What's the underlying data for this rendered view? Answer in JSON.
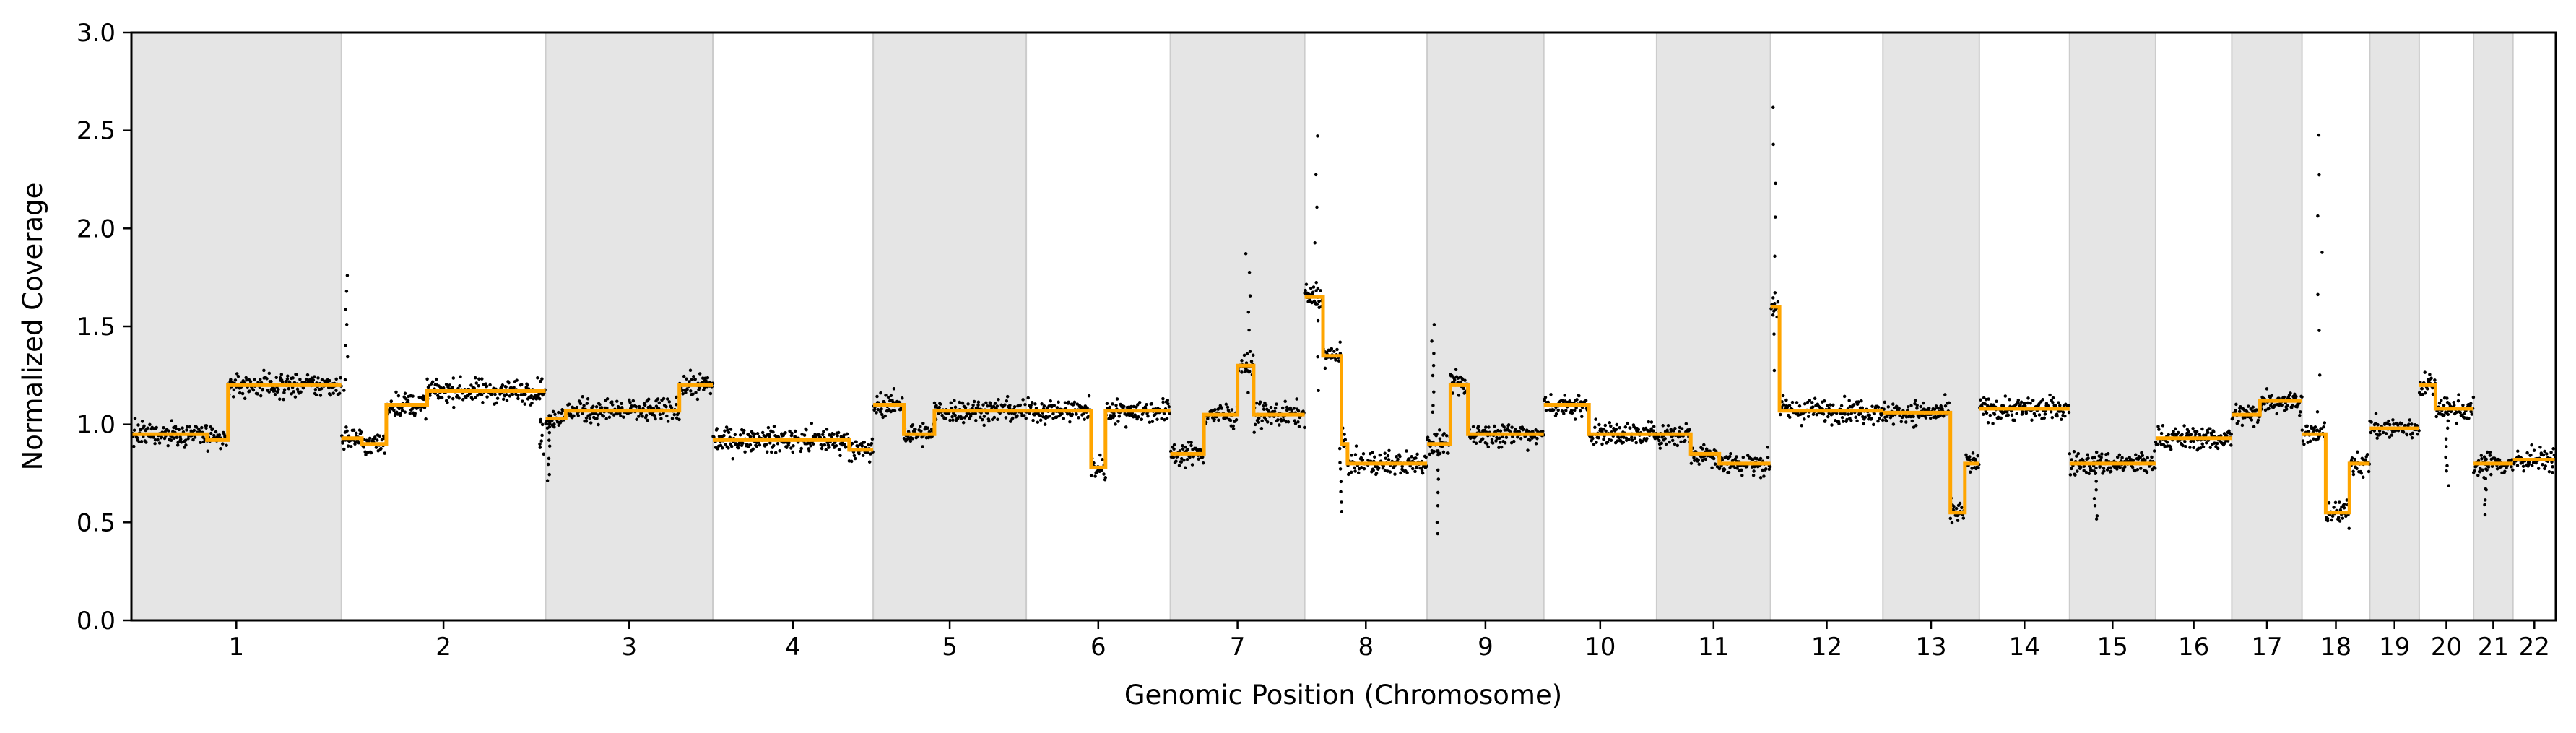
{
  "chart_data": {
    "type": "scatter",
    "xlabel": "Genomic Position (Chromosome)",
    "ylabel": "Normalized Coverage",
    "ylim": [
      0,
      3.0
    ],
    "yticks": [
      "0.0",
      "0.5",
      "1.0",
      "1.5",
      "2.0",
      "2.5",
      "3.0"
    ],
    "grid": false,
    "legend": "none",
    "colors": {
      "points": "#000000",
      "segments": "#FFA500",
      "shade": "#e5e5e5",
      "shade_edge": "#cccccc"
    },
    "chromosomes": [
      {
        "name": "1",
        "size": 248.956,
        "mean": 1.0,
        "segments": [
          [
            0.0,
            0.36,
            0.95
          ],
          [
            0.36,
            0.46,
            0.92
          ],
          [
            0.46,
            0.62,
            1.2
          ],
          [
            0.62,
            1.0,
            1.2
          ]
        ],
        "spikes": []
      },
      {
        "name": "2",
        "size": 242.193,
        "mean": 1.07,
        "segments": [
          [
            0.0,
            0.1,
            0.93
          ],
          [
            0.1,
            0.22,
            0.9
          ],
          [
            0.22,
            0.42,
            1.1
          ],
          [
            0.42,
            1.0,
            1.17
          ]
        ],
        "spikes": [
          [
            0.02,
            1.77
          ],
          [
            0.98,
            0.85
          ]
        ]
      },
      {
        "name": "3",
        "size": 198.295,
        "mean": 1.06,
        "segments": [
          [
            0.0,
            0.12,
            1.03
          ],
          [
            0.12,
            0.8,
            1.07
          ],
          [
            0.8,
            1.0,
            1.2
          ]
        ],
        "spikes": [
          [
            0.02,
            0.7
          ]
        ]
      },
      {
        "name": "4",
        "size": 190.214,
        "mean": 0.93,
        "segments": [
          [
            0.0,
            0.85,
            0.92
          ],
          [
            0.85,
            1.0,
            0.87
          ]
        ],
        "spikes": []
      },
      {
        "name": "5",
        "size": 181.538,
        "mean": 1.02,
        "segments": [
          [
            0.0,
            0.2,
            1.1
          ],
          [
            0.2,
            0.4,
            0.95
          ],
          [
            0.4,
            1.0,
            1.07
          ]
        ],
        "spikes": []
      },
      {
        "name": "6",
        "size": 170.806,
        "mean": 1.06,
        "segments": [
          [
            0.0,
            0.45,
            1.07
          ],
          [
            0.45,
            0.55,
            0.78
          ],
          [
            0.55,
            1.0,
            1.07
          ]
        ],
        "spikes": []
      },
      {
        "name": "7",
        "size": 159.346,
        "mean": 1.07,
        "segments": [
          [
            0.0,
            0.25,
            0.85
          ],
          [
            0.25,
            0.5,
            1.05
          ],
          [
            0.5,
            0.62,
            1.3
          ],
          [
            0.62,
            1.0,
            1.05
          ]
        ],
        "spikes": [
          [
            0.58,
            1.87
          ]
        ]
      },
      {
        "name": "8",
        "size": 145.139,
        "mean": 0.98,
        "segments": [
          [
            0.0,
            0.15,
            1.65
          ],
          [
            0.15,
            0.3,
            1.35
          ],
          [
            0.3,
            0.35,
            0.9
          ],
          [
            0.35,
            1.0,
            0.8
          ]
        ],
        "spikes": [
          [
            0.1,
            2.48
          ],
          [
            0.3,
            0.55
          ]
        ]
      },
      {
        "name": "9",
        "size": 138.395,
        "mean": 0.98,
        "segments": [
          [
            0.0,
            0.2,
            0.9
          ],
          [
            0.2,
            0.35,
            1.2
          ],
          [
            0.35,
            0.6,
            0.95
          ],
          [
            0.6,
            1.0,
            0.95
          ]
        ],
        "spikes": [
          [
            0.1,
            0.45
          ],
          [
            0.05,
            1.5
          ]
        ]
      },
      {
        "name": "10",
        "size": 133.797,
        "mean": 1.01,
        "segments": [
          [
            0.0,
            0.4,
            1.1
          ],
          [
            0.4,
            1.0,
            0.95
          ]
        ],
        "spikes": []
      },
      {
        "name": "11",
        "size": 135.086,
        "mean": 0.92,
        "segments": [
          [
            0.0,
            0.3,
            0.95
          ],
          [
            0.3,
            0.55,
            0.85
          ],
          [
            0.55,
            1.0,
            0.8
          ]
        ],
        "spikes": []
      },
      {
        "name": "12",
        "size": 133.275,
        "mean": 1.08,
        "segments": [
          [
            0.0,
            0.08,
            1.6
          ],
          [
            0.08,
            1.0,
            1.07
          ]
        ],
        "spikes": [
          [
            0.03,
            2.63
          ]
        ]
      },
      {
        "name": "13",
        "size": 114.364,
        "mean": 1.03,
        "segments": [
          [
            0.0,
            0.7,
            1.06
          ],
          [
            0.7,
            0.85,
            0.55
          ],
          [
            0.85,
            1.0,
            0.8
          ]
        ],
        "spikes": []
      },
      {
        "name": "14",
        "size": 107.043,
        "mean": 1.08,
        "segments": [
          [
            0.0,
            1.0,
            1.08
          ]
        ],
        "spikes": []
      },
      {
        "name": "15",
        "size": 101.991,
        "mean": 0.83,
        "segments": [
          [
            0.0,
            1.0,
            0.8
          ]
        ],
        "spikes": [
          [
            0.3,
            0.5
          ]
        ]
      },
      {
        "name": "16",
        "size": 90.338,
        "mean": 0.93,
        "segments": [
          [
            0.0,
            1.0,
            0.93
          ]
        ],
        "spikes": []
      },
      {
        "name": "17",
        "size": 83.257,
        "mean": 1.09,
        "segments": [
          [
            0.0,
            0.4,
            1.05
          ],
          [
            0.4,
            1.0,
            1.12
          ]
        ],
        "spikes": []
      },
      {
        "name": "18",
        "size": 80.373,
        "mean": 0.86,
        "segments": [
          [
            0.0,
            0.35,
            0.95
          ],
          [
            0.35,
            0.7,
            0.55
          ],
          [
            0.7,
            1.0,
            0.8
          ]
        ],
        "spikes": [
          [
            0.25,
            2.48
          ]
        ]
      },
      {
        "name": "19",
        "size": 58.617,
        "mean": 0.98,
        "segments": [
          [
            0.0,
            1.0,
            0.98
          ]
        ],
        "spikes": []
      },
      {
        "name": "20",
        "size": 64.444,
        "mean": 1.07,
        "segments": [
          [
            0.0,
            0.3,
            1.2
          ],
          [
            0.3,
            1.0,
            1.08
          ]
        ],
        "spikes": [
          [
            0.5,
            0.7
          ]
        ]
      },
      {
        "name": "21",
        "size": 46.71,
        "mean": 0.82,
        "segments": [
          [
            0.0,
            1.0,
            0.8
          ]
        ],
        "spikes": [
          [
            0.3,
            0.55
          ]
        ]
      },
      {
        "name": "22",
        "size": 50.818,
        "mean": 0.82,
        "segments": [
          [
            0.0,
            1.0,
            0.82
          ]
        ],
        "spikes": []
      }
    ]
  }
}
